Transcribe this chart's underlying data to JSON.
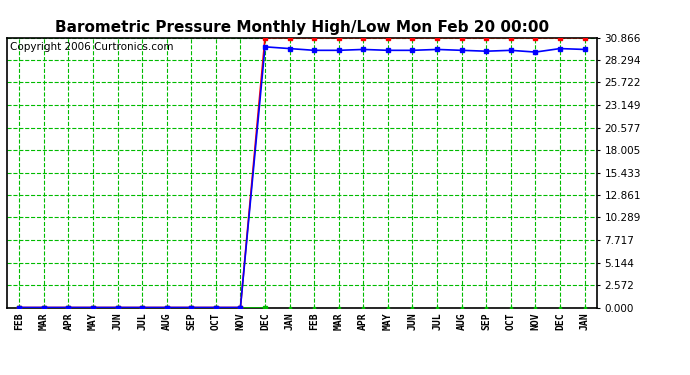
{
  "title": "Barometric Pressure Monthly High/Low Mon Feb 20 00:00",
  "copyright": "Copyright 2006 Curtronics.com",
  "x_labels": [
    "FEB",
    "MAR",
    "APR",
    "MAY",
    "JUN",
    "JUL",
    "AUG",
    "SEP",
    "OCT",
    "NOV",
    "DEC",
    "JAN",
    "FEB",
    "MAR",
    "APR",
    "MAY",
    "JUN",
    "JUL",
    "AUG",
    "SEP",
    "OCT",
    "NOV",
    "DEC",
    "JAN"
  ],
  "y_ticks": [
    0.0,
    2.572,
    5.144,
    7.717,
    10.289,
    12.861,
    15.433,
    18.005,
    20.577,
    23.149,
    25.722,
    28.294,
    30.866
  ],
  "y_min": 0.0,
  "y_max": 30.866,
  "high_color": "#ff0000",
  "low_color": "#0000ff",
  "green_color": "#00bb00",
  "background_color": "#ffffff",
  "grid_color": "#00bb00",
  "high_values": [
    0,
    0,
    0,
    0,
    0,
    0,
    0,
    0,
    0,
    0,
    30.866,
    30.866,
    30.866,
    30.866,
    30.866,
    30.866,
    30.866,
    30.866,
    30.866,
    30.866,
    30.866,
    30.866,
    30.866,
    30.866
  ],
  "low_values": [
    0,
    0,
    0,
    0,
    0,
    0,
    0,
    0,
    0,
    0,
    29.8,
    29.6,
    29.4,
    29.4,
    29.5,
    29.4,
    29.4,
    29.5,
    29.4,
    29.3,
    29.4,
    29.2,
    29.6,
    29.5
  ],
  "green_values": [
    0,
    0,
    0,
    0,
    0,
    0,
    0,
    0,
    0,
    0,
    0,
    0,
    0,
    0,
    0,
    0,
    0,
    0,
    0,
    0,
    0,
    0,
    0,
    0
  ],
  "title_fontsize": 11,
  "copyright_fontsize": 7.5,
  "marker_size": 3,
  "line_width": 1.2
}
